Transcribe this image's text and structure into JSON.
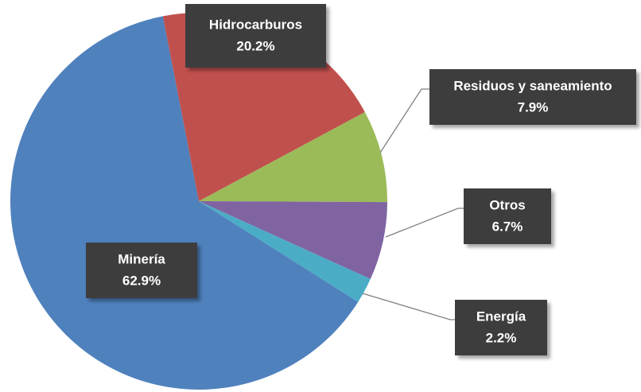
{
  "chart_data": {
    "type": "pie",
    "categories": [
      "Minería",
      "Hidrocarburos",
      "Residuos y saneamiento",
      "Otros",
      "Energía"
    ],
    "values": [
      62.9,
      20.2,
      7.9,
      6.7,
      2.2
    ],
    "value_labels": [
      "62.9%",
      "20.2%",
      "7.9%",
      "6.7%",
      "2.2%"
    ],
    "colors": [
      "#4f81bd",
      "#c0504d",
      "#9bbb59",
      "#8064a2",
      "#4bacc6"
    ]
  }
}
